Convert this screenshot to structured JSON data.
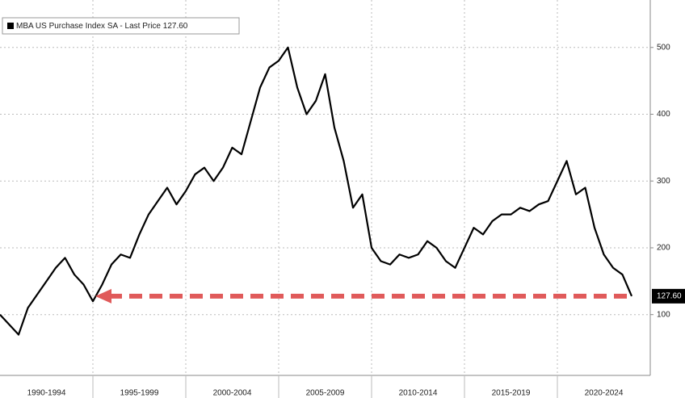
{
  "chart_data": {
    "type": "line",
    "legend": {
      "name": "MBA US Purchase Index SA",
      "label": "Last Price",
      "value": 127.6,
      "value_label": "127.60"
    },
    "categories": [
      "1990-1994",
      "1995-1999",
      "2000-2004",
      "2005-2009",
      "2010-2014",
      "2015-2019",
      "2020-2024"
    ],
    "series": [
      {
        "name": "MBA US Purchase Index SA",
        "color": "#000000",
        "values": [
          [
            100,
            85,
            70,
            110,
            130,
            150,
            170,
            185,
            160,
            145
          ],
          [
            120,
            145,
            175,
            190,
            185,
            220,
            250,
            270,
            290,
            265
          ],
          [
            285,
            310,
            320,
            300,
            320,
            350,
            340,
            390,
            440,
            470
          ],
          [
            480,
            500,
            440,
            400,
            420,
            460,
            380,
            330,
            260,
            280
          ],
          [
            200,
            180,
            175,
            190,
            185,
            190,
            210,
            200,
            180,
            170
          ],
          [
            200,
            230,
            220,
            240,
            250,
            250,
            260,
            255,
            265,
            270
          ],
          [
            300,
            330,
            280,
            290,
            230,
            190,
            170,
            160,
            127.6
          ]
        ]
      }
    ],
    "ylim": [
      9,
      571
    ],
    "yticks": [
      100,
      200,
      300,
      400,
      500
    ],
    "grid": true,
    "annotation_color": "#e05a5a"
  }
}
